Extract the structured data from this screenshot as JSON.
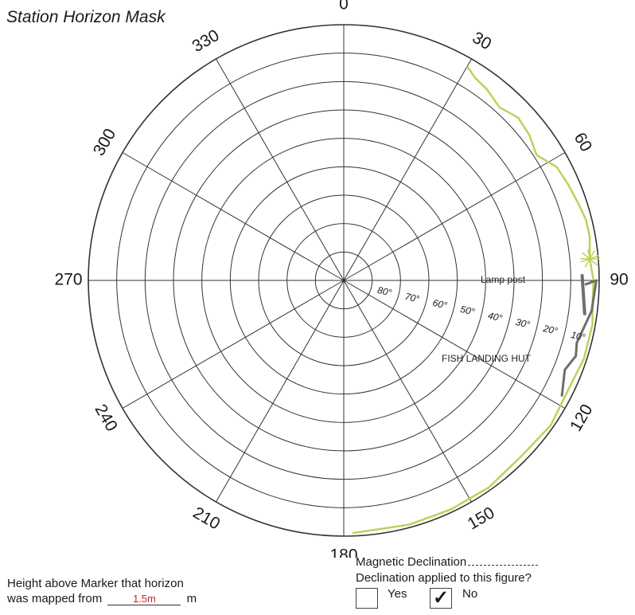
{
  "title": "Station Horizon Mask",
  "azimuth_labels": [
    {
      "deg": 0,
      "text": "0"
    },
    {
      "deg": 30,
      "text": "30"
    },
    {
      "deg": 60,
      "text": "60"
    },
    {
      "deg": 90,
      "text": "90"
    },
    {
      "deg": 120,
      "text": "120"
    },
    {
      "deg": 150,
      "text": "150"
    },
    {
      "deg": 180,
      "text": "180"
    },
    {
      "deg": 210,
      "text": "210"
    },
    {
      "deg": 240,
      "text": "240"
    },
    {
      "deg": 270,
      "text": "270"
    },
    {
      "deg": 300,
      "text": "300"
    },
    {
      "deg": 330,
      "text": "330"
    }
  ],
  "elevation_labels": [
    "80°",
    "70°",
    "60°",
    "50°",
    "40°",
    "30°",
    "20°",
    "10°"
  ],
  "elevation_rings": [
    80,
    70,
    60,
    50,
    40,
    30,
    20,
    10,
    0
  ],
  "annotations": {
    "lamp_post": "Lamp post",
    "fish_landing_hut": "FISH LANDING HUT"
  },
  "horizon_mask_vegetation": [
    [
      30,
      3
    ],
    [
      33,
      5
    ],
    [
      37,
      6
    ],
    [
      42,
      8
    ],
    [
      47,
      6
    ],
    [
      52,
      7
    ],
    [
      57,
      9
    ],
    [
      62,
      5
    ],
    [
      67,
      4
    ],
    [
      72,
      3
    ],
    [
      76,
      2
    ],
    [
      80,
      2
    ],
    [
      85,
      3
    ],
    [
      90,
      2
    ],
    [
      95,
      2
    ],
    [
      100,
      1
    ],
    [
      108,
      1
    ],
    [
      115,
      2
    ],
    [
      125,
      1
    ],
    [
      135,
      2
    ],
    [
      145,
      1
    ],
    [
      155,
      1
    ],
    [
      165,
      1
    ],
    [
      178,
      1
    ]
  ],
  "colors": {
    "vegetation": "#b8d45a",
    "structures": "#6e6e6e",
    "grid": "#333333",
    "height_value": "#cc2222"
  },
  "footer": {
    "height_label_line1": "Height above Marker that horizon",
    "height_label_line2": "was mapped from",
    "height_value": "1.5m",
    "height_unit": "m",
    "declination_label": "Magnetic Declination",
    "applied_question": "Declination applied to this figure?",
    "yes_label": "Yes",
    "no_label": "No",
    "checkmark": "✓"
  }
}
